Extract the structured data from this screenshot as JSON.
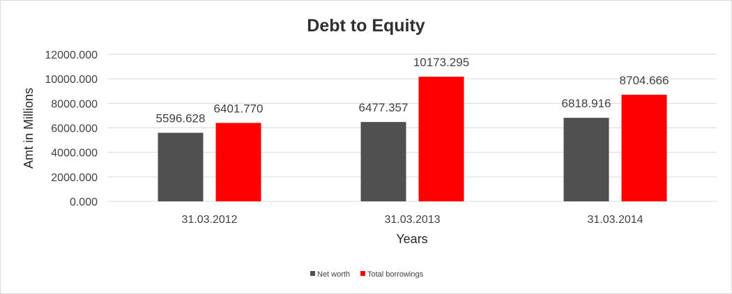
{
  "chart_data": {
    "type": "bar",
    "title": "Debt to Equity",
    "xlabel": "Years",
    "ylabel": "Amt in Millions",
    "categories": [
      "31.03.2012",
      "31.03.2013",
      "31.03.2014"
    ],
    "series": [
      {
        "name": "Net worth",
        "values": [
          5596.628,
          6477.357,
          6818.916
        ],
        "labels": [
          "5596.628",
          "6477.357",
          "6818.916"
        ],
        "color": "#505050"
      },
      {
        "name": "Total borrowings",
        "values": [
          6401.77,
          10173.295,
          8704.666
        ],
        "labels": [
          "6401.770",
          "10173.295",
          "8704.666"
        ],
        "color": "#ff0000"
      }
    ],
    "ylim": [
      0,
      12000
    ],
    "yticks": [
      0,
      2000,
      4000,
      6000,
      8000,
      10000,
      12000
    ],
    "ytick_labels": [
      "0.000",
      "2000.000",
      "4000.000",
      "6000.000",
      "8000.000",
      "10000.000",
      "12000.000"
    ],
    "grid": true,
    "legend_position": "bottom",
    "gridline_color": "#d9d9d9"
  }
}
